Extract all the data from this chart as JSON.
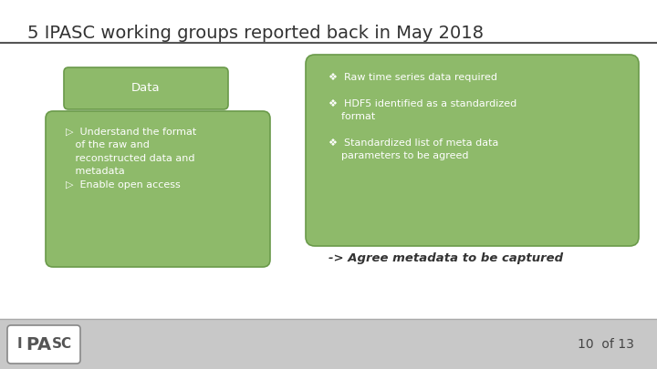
{
  "title": "5 IPASC working groups reported back in May 2018",
  "title_fontsize": 14,
  "title_color": "#333333",
  "bg_color": "#ffffff",
  "footer_color": "#c8c8c8",
  "box_fill": "#8eba6a",
  "box_edge": "#6a9a4a",
  "box_text_color": "#ffffff",
  "main_text_color": "#333333",
  "data_box_text": "Data",
  "bottom_text": "-> Agree metadata to be captured",
  "page_text": "10  of 13"
}
